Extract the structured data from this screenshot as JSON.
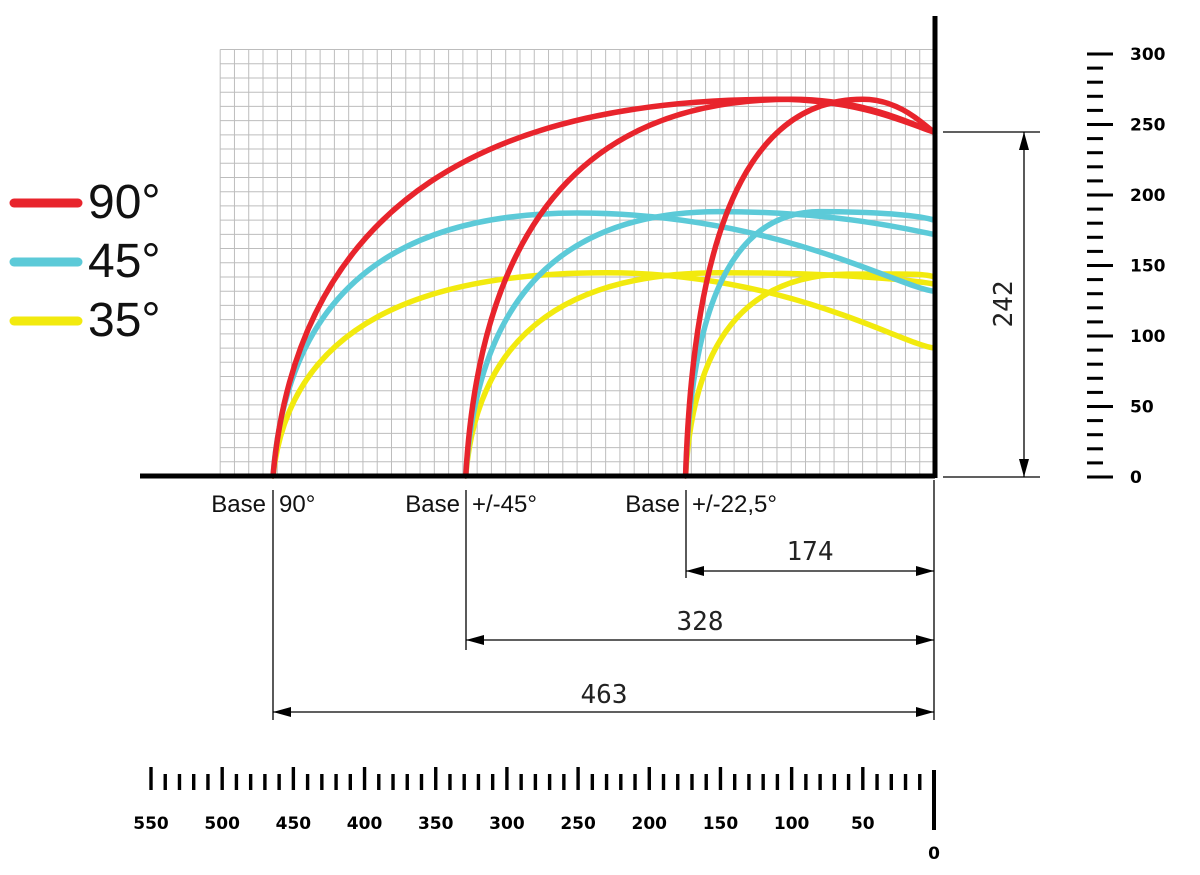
{
  "legend": [
    {
      "label": "90°",
      "color": "#e8242c"
    },
    {
      "label": "45°",
      "color": "#5ccad8"
    },
    {
      "label": "35°",
      "color": "#f2ea0e"
    }
  ],
  "bases": [
    {
      "label": "Base",
      "angle": "90°",
      "distance": 463
    },
    {
      "label": "Base",
      "angle": "+/-45°",
      "distance": 328
    },
    {
      "label": "Base",
      "angle": "+/-22,5°",
      "distance": 174
    }
  ],
  "dimensions": {
    "horizontal": [
      "174",
      "328",
      "463"
    ],
    "vertical": "242"
  },
  "scale_bottom": {
    "labels": [
      "550",
      "500",
      "450",
      "400",
      "350",
      "300",
      "250",
      "200",
      "150",
      "100",
      "50"
    ],
    "zero": "0",
    "max": 550,
    "minor_step": 10
  },
  "scale_right": {
    "labels": [
      "300",
      "250",
      "200",
      "150",
      "100",
      "50",
      "0"
    ],
    "max": 300,
    "minor_step": 10
  },
  "grid": {
    "x_min": 0,
    "x_max": 500,
    "y_min": 0,
    "y_max": 300,
    "step": 10
  },
  "chart_data": {
    "type": "line",
    "xlabel": "",
    "ylabel": "",
    "xlim": [
      0,
      550
    ],
    "ylim": [
      0,
      300
    ],
    "series": [
      {
        "name": "90°",
        "color": "#e8242c",
        "base": 463,
        "top_x": 110,
        "peak": 265,
        "end_y": 242
      },
      {
        "name": "90°",
        "color": "#e8242c",
        "base": 328,
        "top_x": 100,
        "peak": 265,
        "end_y": 242
      },
      {
        "name": "90°",
        "color": "#e8242c",
        "base": 174,
        "top_x": 50,
        "peak": 265,
        "end_y": 242
      },
      {
        "name": "45°",
        "color": "#5ccad8",
        "base": 463,
        "top_x": 250,
        "peak": 185,
        "end_y": 130
      },
      {
        "name": "45°",
        "color": "#5ccad8",
        "base": 328,
        "top_x": 150,
        "peak": 186,
        "end_y": 170
      },
      {
        "name": "45°",
        "color": "#5ccad8",
        "base": 174,
        "top_x": 80,
        "peak": 186,
        "end_y": 180
      },
      {
        "name": "35°",
        "color": "#f2ea0e",
        "base": 463,
        "top_x": 230,
        "peak": 143,
        "end_y": 90
      },
      {
        "name": "35°",
        "color": "#f2ea0e",
        "base": 328,
        "top_x": 150,
        "peak": 143,
        "end_y": 135
      },
      {
        "name": "35°",
        "color": "#f2ea0e",
        "base": 174,
        "top_x": 60,
        "peak": 142,
        "end_y": 140
      }
    ]
  }
}
